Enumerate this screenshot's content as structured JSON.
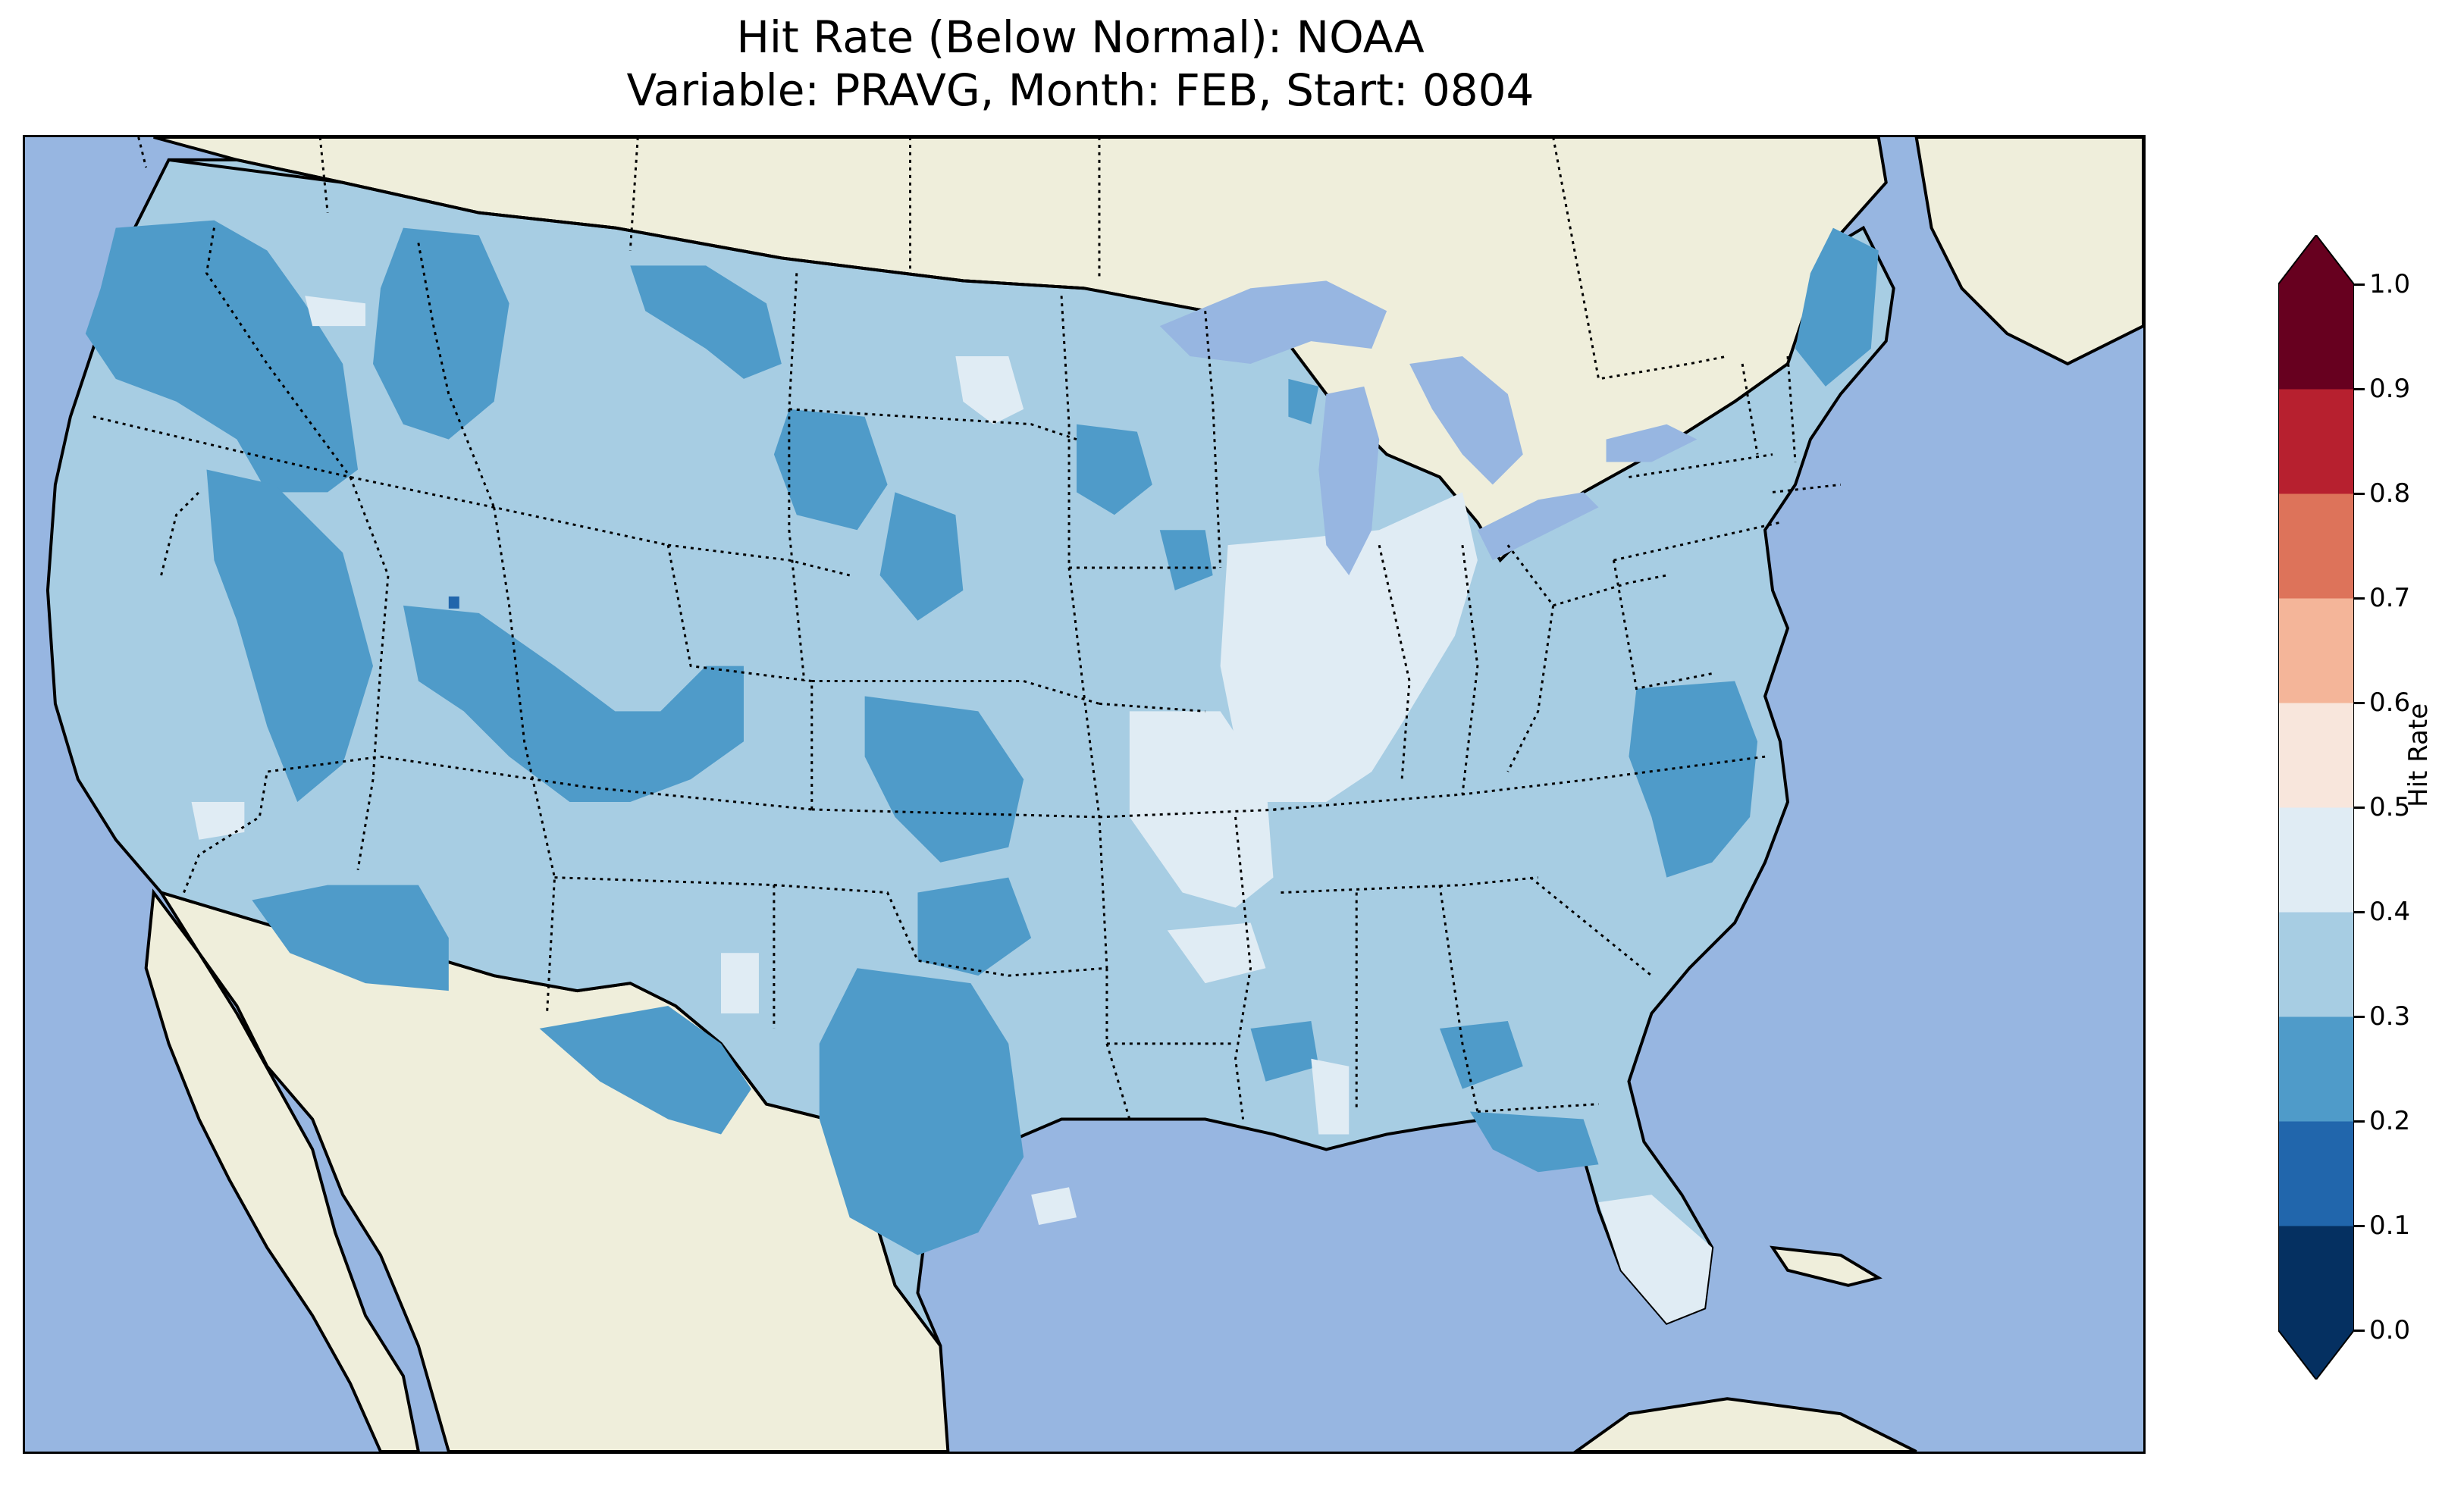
{
  "title": {
    "line1": "Hit Rate (Below Normal): NOAA",
    "line2": "Variable: PRAVG, Month: FEB, Start: 0804"
  },
  "colorbar": {
    "label": "Hit Rate",
    "ticks": [
      "0.0",
      "0.1",
      "0.2",
      "0.3",
      "0.4",
      "0.5",
      "0.6",
      "0.7",
      "0.8",
      "0.9",
      "1.0"
    ],
    "bins": [
      {
        "range": [
          0.0,
          0.1
        ],
        "color": "#053061"
      },
      {
        "range": [
          0.1,
          0.2
        ],
        "color": "#2166ac"
      },
      {
        "range": [
          0.2,
          0.3
        ],
        "color": "#4f9bc9"
      },
      {
        "range": [
          0.3,
          0.4
        ],
        "color": "#a7cde3"
      },
      {
        "range": [
          0.4,
          0.5
        ],
        "color": "#e0ecf4"
      },
      {
        "range": [
          0.5,
          0.6
        ],
        "color": "#f8e6dc"
      },
      {
        "range": [
          0.6,
          0.7
        ],
        "color": "#f4b599"
      },
      {
        "range": [
          0.7,
          0.8
        ],
        "color": "#dd735a"
      },
      {
        "range": [
          0.8,
          0.9
        ],
        "color": "#b7202f"
      },
      {
        "range": [
          0.9,
          1.0
        ],
        "color": "#67001f"
      }
    ],
    "extend": "both"
  },
  "map": {
    "ocean_color": "#97b6e1",
    "land_color": "#efeedb",
    "lake_color": "#97b6e1",
    "base_hit_rate_bin": "0.3-0.4"
  }
}
